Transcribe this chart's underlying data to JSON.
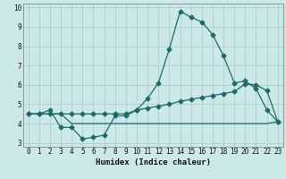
{
  "xlabel": "Humidex (Indice chaleur)",
  "bg_color": "#cce8e8",
  "grid_color": "#aacece",
  "line_color": "#1a6b6b",
  "xlim": [
    -0.5,
    23.5
  ],
  "ylim": [
    2.8,
    10.2
  ],
  "xticks": [
    0,
    1,
    2,
    3,
    4,
    5,
    6,
    7,
    8,
    9,
    10,
    11,
    12,
    13,
    14,
    15,
    16,
    17,
    18,
    19,
    20,
    21,
    22,
    23
  ],
  "yticks": [
    3,
    4,
    5,
    6,
    7,
    8,
    9,
    10
  ],
  "line1_x": [
    0,
    1,
    2,
    3,
    4,
    5,
    6,
    7,
    8,
    9,
    10,
    11,
    12,
    13,
    14,
    15,
    16,
    17,
    18,
    19,
    20,
    21,
    22,
    23
  ],
  "line1_y": [
    4.5,
    4.5,
    4.7,
    3.8,
    3.8,
    3.2,
    3.3,
    3.4,
    4.4,
    4.4,
    4.7,
    5.3,
    6.1,
    7.85,
    9.8,
    9.5,
    9.25,
    8.6,
    7.5,
    6.1,
    6.2,
    5.8,
    4.7,
    4.1
  ],
  "line2_x": [
    0,
    1,
    2,
    3,
    4,
    5,
    6,
    7,
    8,
    9,
    10,
    11,
    12,
    13,
    14,
    15,
    16,
    17,
    18,
    19,
    20,
    21,
    22,
    23
  ],
  "line2_y": [
    4.5,
    4.5,
    4.5,
    4.5,
    4.5,
    4.5,
    4.5,
    4.5,
    4.5,
    4.5,
    4.7,
    4.8,
    4.9,
    5.0,
    5.15,
    5.25,
    5.35,
    5.45,
    5.55,
    5.65,
    6.05,
    6.0,
    5.7,
    4.1
  ],
  "line3_x": [
    0,
    1,
    2,
    3,
    4,
    5,
    6,
    7,
    8,
    9,
    10,
    11,
    12,
    13,
    14,
    15,
    16,
    17,
    18,
    19,
    20,
    21,
    22,
    23
  ],
  "line3_y": [
    4.5,
    4.5,
    4.5,
    4.5,
    4.0,
    4.0,
    4.0,
    4.0,
    4.0,
    4.0,
    4.0,
    4.0,
    4.0,
    4.0,
    4.0,
    4.0,
    4.0,
    4.0,
    4.0,
    4.0,
    4.0,
    4.0,
    4.0,
    4.1
  ]
}
